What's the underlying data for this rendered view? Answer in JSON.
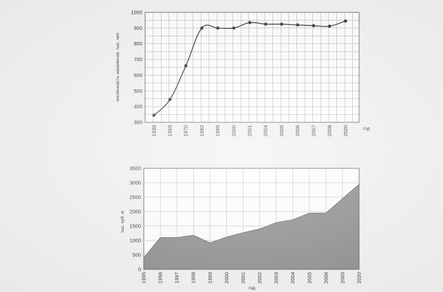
{
  "chart_data": [
    {
      "type": "line",
      "title": "",
      "xlabel": "год",
      "ylabel": "численность населения, тыс. чел",
      "ylim": [
        300,
        1000
      ],
      "yticks": [
        300,
        400,
        500,
        600,
        700,
        800,
        900,
        1000
      ],
      "categories": [
        "1939",
        "1959",
        "1970",
        "1992",
        "1995",
        "2000",
        "2001",
        "2004",
        "2005",
        "2006",
        "2007",
        "2008",
        "2020"
      ],
      "series": [
        {
          "values": [
            345,
            445,
            660,
            900,
            900,
            900,
            935,
            925,
            925,
            920,
            915,
            912,
            945
          ]
        }
      ],
      "grid": true,
      "markers": true,
      "colors": {
        "line": "#2a2a2a",
        "grid": "#9a9a9a"
      }
    },
    {
      "type": "area",
      "title": "",
      "xlabel": "год",
      "ylabel": "тыс. куб. м",
      "ylim": [
        0,
        3500
      ],
      "yticks": [
        0,
        500,
        1000,
        1500,
        2000,
        2500,
        3000,
        3500
      ],
      "categories": [
        "1995",
        "1996",
        "1997",
        "1998",
        "1999",
        "2000",
        "2001",
        "2002",
        "2003",
        "2004",
        "2005",
        "2006",
        "2009",
        "2020"
      ],
      "series": [
        {
          "values": [
            400,
            1100,
            1100,
            1180,
            920,
            1120,
            1270,
            1400,
            1620,
            1720,
            1950,
            1950,
            2450,
            2950
          ]
        }
      ],
      "grid": true,
      "colors": {
        "fill": "#8a8a8a",
        "edge": "#555555",
        "grid": "#a8a8a8"
      }
    }
  ]
}
